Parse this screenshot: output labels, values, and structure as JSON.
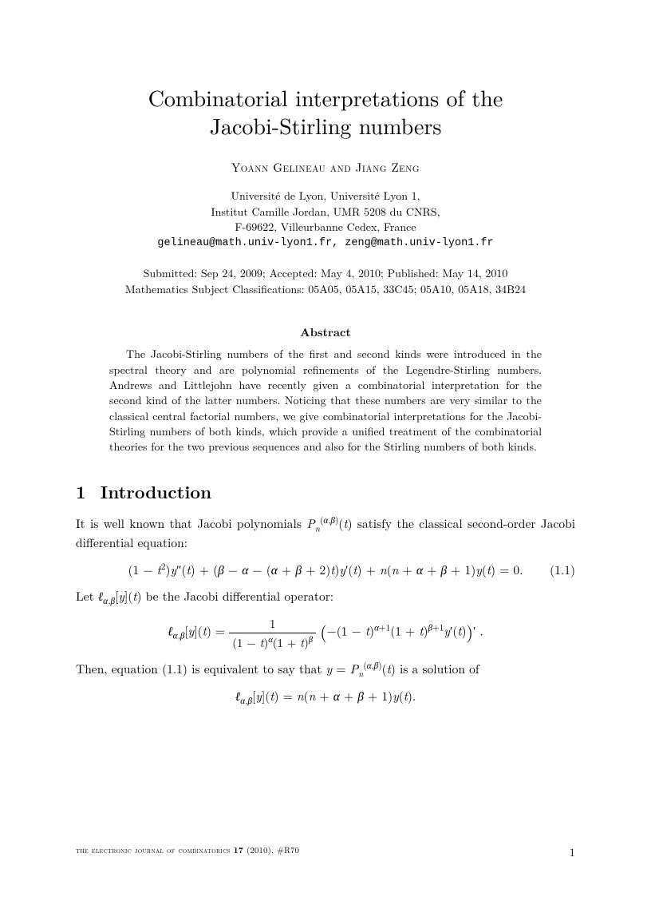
{
  "title_l1": "Combinatorial interpretations of the",
  "title_l2": "Jacobi-Stirling numbers",
  "authors": "Yoann Gelineau and Jiang Zeng",
  "affil_l1": "Université de Lyon, Université Lyon 1,",
  "affil_l2": "Institut Camille Jordan, UMR 5208 du CNRS,",
  "affil_l3": "F-69622, Villeurbanne Cedex, France",
  "emails": "gelineau@math.univ-lyon1.fr, zeng@math.univ-lyon1.fr",
  "dates_l1": "Submitted: Sep 24, 2009; Accepted: May 4, 2010; Published: May 14, 2010",
  "dates_l2": "Mathematics Subject Classifications: 05A05, 05A15, 33C45; 05A10, 05A18, 34B24",
  "abstract_h": "Abstract",
  "abstract": "The Jacobi-Stirling numbers of the first and second kinds were introduced in the spectral theory and are polynomial refinements of the Legendre-Stirling numbers. Andrews and Littlejohn have recently given a combinatorial interpretation for the second kind of the latter numbers. Noticing that these numbers are very similar to the classical central factorial numbers, we give combinatorial interpretations for the Jacobi-Stirling numbers of both kinds, which provide a unified treatment of the combinatorial theories for the two previous sequences and also for the Stirling numbers of both kinds.",
  "sec_num": "1",
  "sec_title": "Introduction",
  "p1a": "It is well known that Jacobi polynomials ",
  "p1b": " satisfy the classical second-order Jacobi differential equation:",
  "eq1_num": "(1.1)",
  "p2a": "Let ",
  "p2b": " be the Jacobi differential operator:",
  "p3a": "Then, equation (1.1) is equivalent to say that ",
  "p3b": " is a solution of",
  "footer_journal": "the electronic journal of combinatorics ",
  "footer_vol": "17",
  "footer_rest": " (2010), #R70",
  "page_no": "1"
}
